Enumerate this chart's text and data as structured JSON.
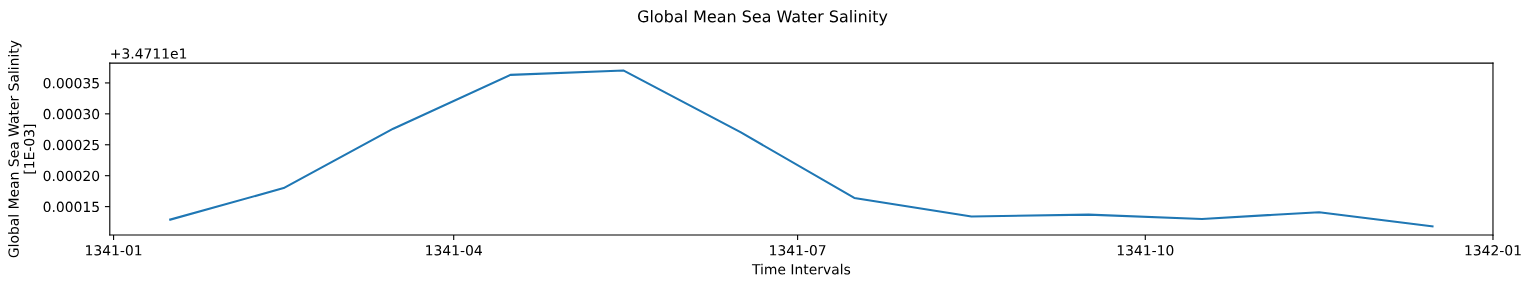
{
  "chart_data": {
    "type": "line",
    "title": "Global Mean Sea Water Salinity",
    "xlabel": "Time Intervals",
    "ylabel": "Global Mean Sea Water Salinity\n[1E-03]",
    "annotations": [
      "+3.4711e1"
    ],
    "x": [
      "1341-01-16",
      "1341-02-15",
      "1341-03-16",
      "1341-04-16",
      "1341-05-16",
      "1341-06-16",
      "1341-07-16",
      "1341-08-16",
      "1341-09-16",
      "1341-10-16",
      "1341-11-16",
      "1341-12-16"
    ],
    "series": [
      {
        "color": "#1f77b4",
        "values": [
          0.000129,
          0.00018,
          0.000276,
          0.000363,
          0.00037,
          0.00027,
          0.000164,
          0.000134,
          0.000137,
          0.00013,
          0.000141,
          0.000118
        ]
      }
    ],
    "xlim": [
      "1340-12-31",
      "1342-01-01"
    ],
    "xticks": [
      "1341-01",
      "1341-04",
      "1341-07",
      "1341-10",
      "1342-01"
    ],
    "ylim": [
      0.000104,
      0.000382
    ],
    "yticks": [
      0.00015,
      {
        "value": 0.0002,
        "label": "0.00020"
      },
      0.00025,
      {
        "value": 0.0003,
        "label": "0.00030"
      },
      0.00035
    ],
    "grid": false,
    "marker": "none",
    "line_style": "solid"
  }
}
